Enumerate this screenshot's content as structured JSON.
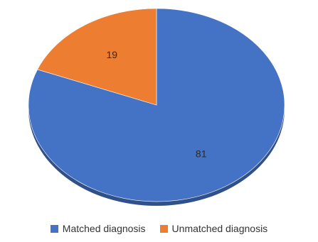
{
  "chart_data": {
    "type": "pie",
    "title": "",
    "categories": [
      "Matched diagnosis",
      "Unmatched diagnosis"
    ],
    "values": [
      81,
      19
    ],
    "colors": [
      "#4472C4",
      "#ED7D31"
    ],
    "legend_position": "bottom",
    "data_labels": [
      "81",
      "19"
    ]
  },
  "legend": {
    "items": [
      {
        "label": "Matched diagnosis",
        "color": "#4472C4"
      },
      {
        "label": "Unmatched diagnosis",
        "color": "#ED7D31"
      }
    ]
  }
}
